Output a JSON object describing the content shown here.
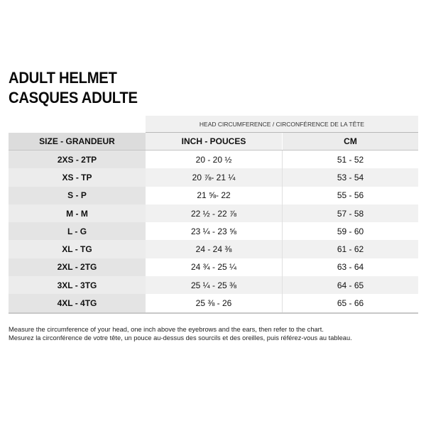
{
  "title": {
    "line1": "ADULT HELMET",
    "line2": "CASQUES ADULTE"
  },
  "group_header": "HEAD CIRCUMFERENCE / CIRCONFÉRENCE DE LA TÊTE",
  "columns": [
    "SIZE - GRANDEUR",
    "INCH - POUCES",
    "CM"
  ],
  "rows": [
    [
      "2XS - 2TP",
      "20 - 20 ½",
      "51 - 52"
    ],
    [
      "XS - TP",
      "20 ⅞- 21 ¼",
      "53 - 54"
    ],
    [
      "S - P",
      "21 ⅝- 22",
      "55 - 56"
    ],
    [
      "M - M",
      "22 ½ - 22 ⅞",
      "57 - 58"
    ],
    [
      "L - G",
      "23 ¼ - 23 ⅝",
      "59 - 60"
    ],
    [
      "XL - TG",
      "24 - 24 ⅜",
      "61 - 62"
    ],
    [
      "2XL - 2TG",
      "24 ¾ - 25 ¼",
      "63 - 64"
    ],
    [
      "3XL - 3TG",
      "25 ¼ - 25 ⅜",
      "64 - 65"
    ],
    [
      "4XL - 4TG",
      "25 ⅜ - 26",
      "65 - 66"
    ]
  ],
  "notes": [
    "Measure the circumference of your head, one inch above the eyebrows and the ears, then refer to the chart.",
    "Mesurez la circonférence de votre tête, un pouce au-dessus des sourcils et des oreilles, puis référez-vous au tableau."
  ]
}
